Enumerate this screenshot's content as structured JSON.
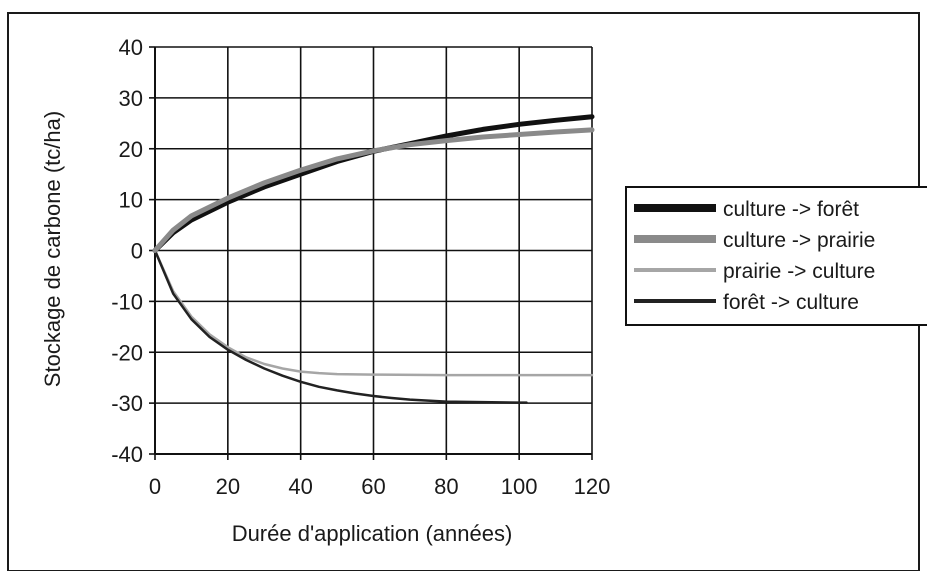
{
  "chart_data": {
    "type": "line",
    "xlabel": "Durée d'application (années)",
    "ylabel": "Stockage de carbone (tc/ha)",
    "xlim": [
      0,
      120
    ],
    "ylim": [
      -40,
      40
    ],
    "xticks": [
      "0",
      "20",
      "40",
      "60",
      "80",
      "100",
      "120"
    ],
    "yticks": [
      "40",
      "30",
      "20",
      "10",
      "0",
      "-10",
      "-20",
      "-30",
      "-40"
    ],
    "grid": true,
    "legend_position": "right",
    "series": [
      {
        "name": "culture -> forêt",
        "color": "#111111",
        "style": "thick",
        "x": [
          0,
          5,
          10,
          20,
          30,
          40,
          50,
          60,
          70,
          80,
          90,
          100,
          110,
          120
        ],
        "y": [
          0,
          3.5,
          6,
          9.5,
          12.5,
          15,
          17.5,
          19.5,
          21,
          22.5,
          23.8,
          24.8,
          25.6,
          26.3
        ]
      },
      {
        "name": "culture -> prairie",
        "color": "#8a8a8a",
        "style": "thick",
        "x": [
          0,
          5,
          10,
          20,
          30,
          40,
          50,
          60,
          70,
          80,
          90,
          100,
          110,
          120
        ],
        "y": [
          0,
          4,
          6.8,
          10.3,
          13.3,
          15.8,
          18,
          19.6,
          20.8,
          21.6,
          22.3,
          22.8,
          23.3,
          23.7
        ]
      },
      {
        "name": "prairie -> culture",
        "color": "#a6a6a6",
        "style": "thin",
        "x": [
          0,
          5,
          10,
          15,
          20,
          25,
          30,
          35,
          40,
          45,
          50,
          60,
          80,
          100,
          120
        ],
        "y": [
          0,
          -8,
          -13,
          -16.5,
          -19,
          -21,
          -22.3,
          -23.2,
          -23.8,
          -24.1,
          -24.3,
          -24.4,
          -24.5,
          -24.5,
          -24.5
        ]
      },
      {
        "name": "forêt -> culture",
        "color": "#222222",
        "style": "thin",
        "x": [
          0,
          5,
          10,
          15,
          20,
          25,
          30,
          35,
          40,
          45,
          50,
          55,
          60,
          65,
          70,
          75,
          80,
          90,
          100,
          102
        ],
        "y": [
          0,
          -8.5,
          -13.5,
          -17,
          -19.5,
          -21.5,
          -23.2,
          -24.6,
          -25.8,
          -26.8,
          -27.5,
          -28.1,
          -28.6,
          -29,
          -29.3,
          -29.5,
          -29.7,
          -29.8,
          -29.9,
          -29.9
        ]
      }
    ]
  }
}
